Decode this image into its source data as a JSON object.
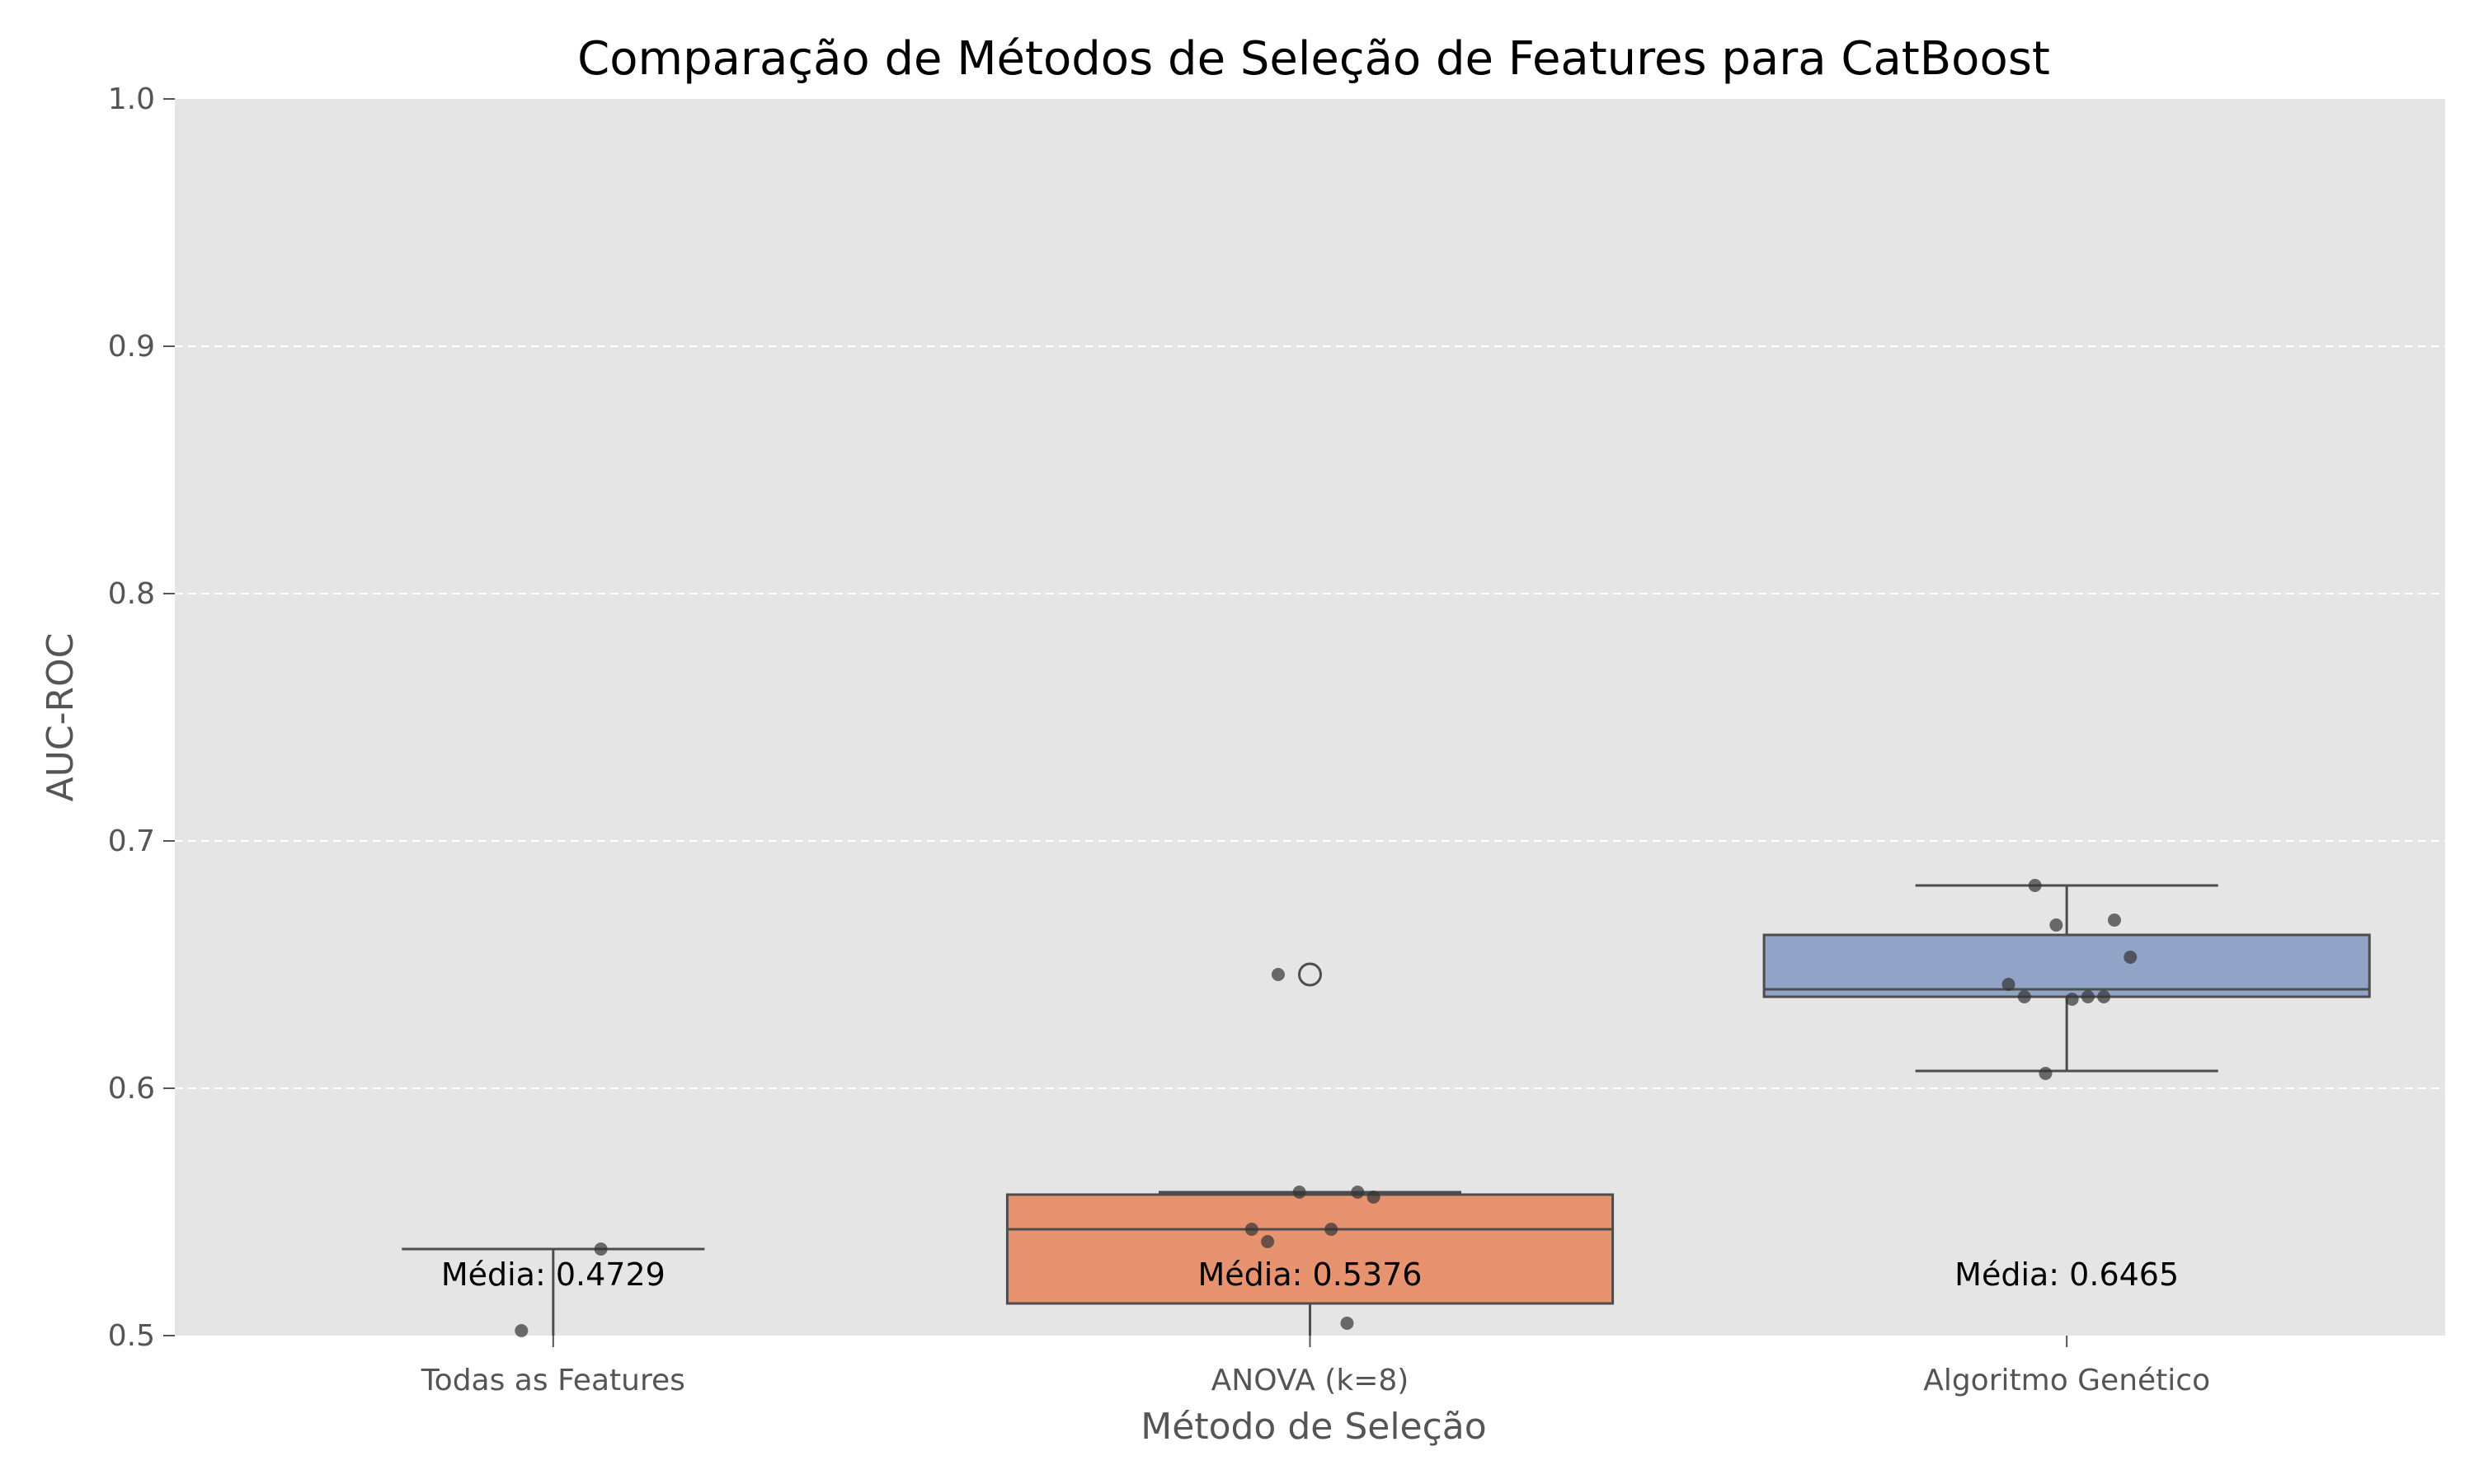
{
  "chart_data": {
    "type": "box",
    "title": "Comparação de Métodos de Seleção de Features para CatBoost",
    "xlabel": "Método de Seleção",
    "ylabel": "AUC-ROC",
    "ylim": [
      0.5,
      1.0
    ],
    "yticks": [
      "0.5",
      "0.6",
      "0.7",
      "0.8",
      "0.9",
      "1.0"
    ],
    "grid": "y-dashed",
    "background": "#e5e5e5",
    "categories": [
      "Todas as Features",
      "ANOVA (k=8)",
      "Algoritmo Genético"
    ],
    "series": [
      {
        "category": "Todas as Features",
        "color": "#66c2a5",
        "box": {
          "whislo": 0.47,
          "q1": 0.5,
          "median": 0.5,
          "q3": 0.5,
          "whishi": 0.535
        },
        "fliers": [],
        "points": [
          0.502,
          0.535
        ],
        "mean_label": "Média: 0.4729"
      },
      {
        "category": "ANOVA (k=8)",
        "color": "#e8936f",
        "box": {
          "whislo": 0.47,
          "q1": 0.513,
          "median": 0.543,
          "q3": 0.557,
          "whishi": 0.558
        },
        "fliers": [
          0.646
        ],
        "points": [
          0.646,
          0.558,
          0.558,
          0.556,
          0.543,
          0.543,
          0.538,
          0.505
        ],
        "mean_label": "Média: 0.5376"
      },
      {
        "category": "Algoritmo Genético",
        "color": "#92a3c8",
        "box": {
          "whislo": 0.607,
          "q1": 0.637,
          "median": 0.64,
          "q3": 0.662,
          "whishi": 0.682
        },
        "fliers": [],
        "points": [
          0.682,
          0.668,
          0.666,
          0.653,
          0.642,
          0.637,
          0.637,
          0.637,
          0.636,
          0.606
        ],
        "mean_label": "Média: 0.6465"
      }
    ]
  }
}
